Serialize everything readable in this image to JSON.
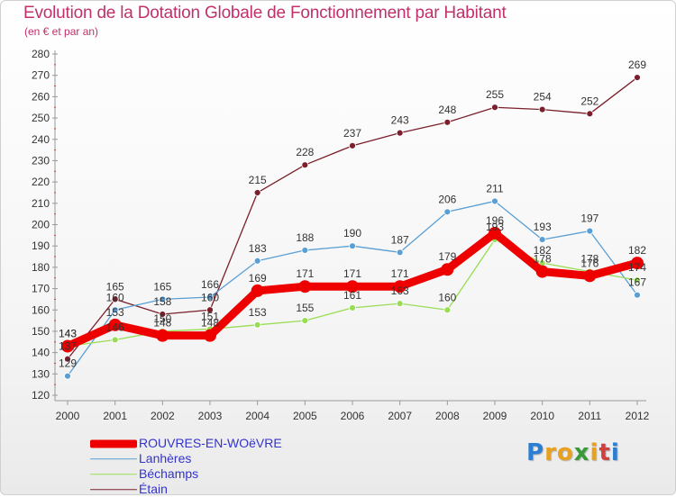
{
  "title": "Evolution de la Dotation Globale de Fonctionnement par Habitant",
  "subtitle": "(en € et par an)",
  "logo_text": "Proxiti",
  "colors": {
    "title": "#c0306a",
    "legend_text": "#3333cc",
    "ROUVRES-EN-WOëVRE": "#ee0000",
    "Lanhères": "#5a9fd4",
    "Béchamps": "#99dd55",
    "Étain": "#7a1f2b"
  },
  "chart_data": {
    "type": "line",
    "title": "Evolution de la Dotation Globale de Fonctionnement par Habitant",
    "subtitle": "(en € et par an)",
    "xlabel": "",
    "ylabel": "",
    "ylim": [
      120,
      280
    ],
    "yticks": [
      120,
      130,
      140,
      150,
      160,
      170,
      180,
      190,
      200,
      210,
      220,
      230,
      240,
      250,
      260,
      270,
      280
    ],
    "grid": false,
    "legend_position": "bottom-left",
    "categories": [
      "2000",
      "2001",
      "2002",
      "2003",
      "2004",
      "2005",
      "2006",
      "2007",
      "2008",
      "2009",
      "2010",
      "2011",
      "2012"
    ],
    "series": [
      {
        "name": "ROUVRES-EN-WOëVRE",
        "values": [
          143,
          153,
          148,
          148,
          169,
          171,
          171,
          171,
          179,
          196,
          178,
          176,
          182
        ]
      },
      {
        "name": "Lanhères",
        "values": [
          129,
          160,
          165,
          166,
          183,
          188,
          190,
          187,
          206,
          211,
          193,
          197,
          167
        ]
      },
      {
        "name": "Béchamps",
        "values": [
          143,
          146,
          150,
          151,
          153,
          155,
          161,
          163,
          160,
          193,
          182,
          178,
          174
        ]
      },
      {
        "name": "Étain",
        "values": [
          137,
          165,
          158,
          160,
          215,
          228,
          237,
          243,
          248,
          255,
          254,
          252,
          269
        ]
      }
    ]
  }
}
